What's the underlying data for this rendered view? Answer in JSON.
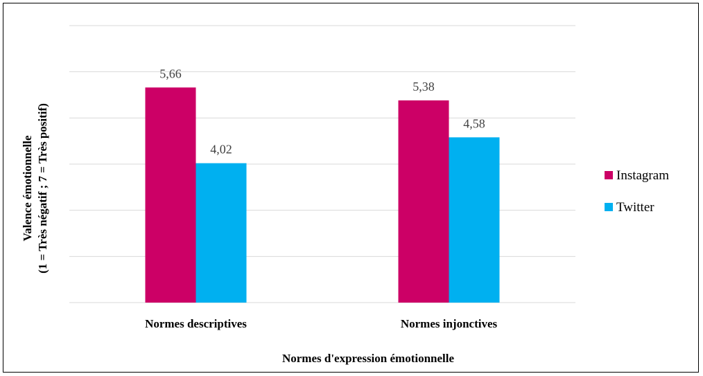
{
  "chart_data": {
    "type": "bar",
    "title": "",
    "xlabel": "Normes d'expression émotionnelle",
    "ylabel_line1": "Valence émotionnelle",
    "ylabel_line2": "(1 = Très négatif ; 7 = Très positif)",
    "categories": [
      "Normes descriptives",
      "Normes injonctives"
    ],
    "series": [
      {
        "name": "Instagram",
        "values": [
          5.66,
          5.38
        ],
        "labels": [
          "5,66",
          "5,38"
        ],
        "color": "#cc0066"
      },
      {
        "name": "Twitter",
        "values": [
          4.02,
          4.58
        ],
        "labels": [
          "4,02",
          "4,58"
        ],
        "color": "#00b0f0"
      }
    ],
    "ylim": [
      1,
      7
    ],
    "grid": true,
    "legend": "right",
    "gridline_color": "#d9d9d9"
  }
}
